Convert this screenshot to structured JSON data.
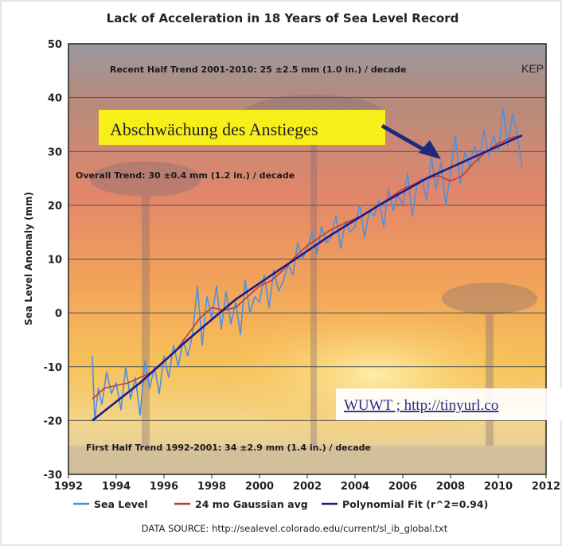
{
  "chart_data": {
    "type": "line",
    "title": "Lack of Acceleration in 18 Years of Sea Level Record",
    "xlabel": "",
    "ylabel": "Sea Level Anomaly (mm)",
    "xlim": [
      1992,
      2012
    ],
    "ylim": [
      -30,
      50
    ],
    "x_ticks": [
      "1992",
      "1994",
      "1996",
      "1998",
      "2000",
      "2002",
      "2004",
      "2006",
      "2008",
      "2010",
      "2012"
    ],
    "y_ticks": [
      "50",
      "40",
      "30",
      "20",
      "10",
      "0",
      "-10",
      "-20",
      "-30"
    ],
    "grid": "horizontal",
    "series": [
      {
        "name": "Sea Level",
        "color": "#4f8fe0",
        "x": [
          1993.0,
          1993.1,
          1993.25,
          1993.4,
          1993.6,
          1993.8,
          1994.0,
          1994.2,
          1994.4,
          1994.6,
          1994.8,
          1995.0,
          1995.2,
          1995.4,
          1995.6,
          1995.8,
          1996.0,
          1996.2,
          1996.4,
          1996.6,
          1996.8,
          1997.0,
          1997.2,
          1997.4,
          1997.6,
          1997.8,
          1998.0,
          1998.2,
          1998.4,
          1998.6,
          1998.8,
          1999.0,
          1999.2,
          1999.4,
          1999.6,
          1999.8,
          2000.0,
          2000.2,
          2000.4,
          2000.6,
          2000.8,
          2001.0,
          2001.2,
          2001.4,
          2001.6,
          2001.8,
          2002.0,
          2002.2,
          2002.4,
          2002.6,
          2002.8,
          2003.0,
          2003.2,
          2003.4,
          2003.6,
          2003.8,
          2004.0,
          2004.2,
          2004.4,
          2004.6,
          2004.8,
          2005.0,
          2005.2,
          2005.4,
          2005.6,
          2005.8,
          2006.0,
          2006.2,
          2006.4,
          2006.6,
          2006.8,
          2007.0,
          2007.2,
          2007.4,
          2007.6,
          2007.8,
          2008.0,
          2008.2,
          2008.4,
          2008.6,
          2008.8,
          2009.0,
          2009.2,
          2009.4,
          2009.6,
          2009.8,
          2010.0,
          2010.2,
          2010.4,
          2010.6,
          2010.8,
          2011.0
        ],
        "values": [
          -8,
          -20,
          -14,
          -17,
          -11,
          -15,
          -13,
          -18,
          -10,
          -16,
          -12,
          -19,
          -9,
          -14,
          -10,
          -15,
          -8,
          -12,
          -6,
          -10,
          -5,
          -8,
          -4,
          5,
          -6,
          3,
          -1,
          5,
          -3,
          4,
          -2,
          2,
          -4,
          6,
          0,
          3,
          2,
          7,
          1,
          8,
          4,
          6,
          9,
          7,
          13,
          10,
          12,
          15,
          11,
          16,
          13,
          14,
          18,
          12,
          17,
          15,
          16,
          20,
          14,
          19,
          18,
          21,
          16,
          23,
          19,
          22,
          20,
          26,
          18,
          24,
          25,
          21,
          29,
          23,
          28,
          20,
          26,
          33,
          24,
          30,
          27,
          31,
          28,
          34,
          29,
          33,
          30,
          38,
          31,
          37,
          33,
          27
        ]
      },
      {
        "name": "24 mo Gaussian avg",
        "color": "#c03a3a",
        "x": [
          1993.0,
          1993.5,
          1994.0,
          1994.5,
          1995.0,
          1995.5,
          1996.0,
          1996.5,
          1997.0,
          1997.5,
          1998.0,
          1998.5,
          1999.0,
          1999.5,
          2000.0,
          2000.5,
          2001.0,
          2001.5,
          2002.0,
          2002.5,
          2003.0,
          2003.5,
          2004.0,
          2004.5,
          2005.0,
          2005.5,
          2006.0,
          2006.5,
          2007.0,
          2007.5,
          2008.0,
          2008.5,
          2009.0,
          2009.5,
          2010.0,
          2010.5,
          2011.0
        ],
        "values": [
          -16,
          -14,
          -13.5,
          -13,
          -12,
          -11,
          -9,
          -7,
          -4,
          -1,
          1,
          0.5,
          1,
          3,
          5,
          6,
          8,
          10.5,
          12.5,
          14,
          15.5,
          16.5,
          17.5,
          18.5,
          20,
          21.5,
          23,
          24,
          25,
          25.5,
          24.5,
          25.5,
          28,
          30,
          31.5,
          32.5,
          33
        ]
      },
      {
        "name": "Polynomial Fit (r^2=0.94)",
        "color": "#1c1c8a",
        "x": [
          1993,
          1995,
          1997,
          1999,
          2001,
          2003,
          2005,
          2007,
          2009,
          2011
        ],
        "values": [
          -20,
          -13,
          -5,
          2.5,
          8.5,
          14.5,
          20,
          25,
          29,
          33
        ]
      }
    ],
    "annotations": [
      "Recent Half Trend 2001-2010:  25 ±2.5 mm (1.0 in.) / decade",
      "Overall Trend:  30 ±0.4 mm (1.2 in.) / decade",
      "First Half Trend 1992-2001:  34 ±2.9 mm (1.4 in.) / decade",
      "Abschwächung des Anstieges",
      "KEP",
      "WUWT ; http://tinyurl.co"
    ],
    "source": "DATA SOURCE: http://sealevel.colorado.edu/current/sl_ib_global.txt",
    "legend_position": "bottom"
  }
}
